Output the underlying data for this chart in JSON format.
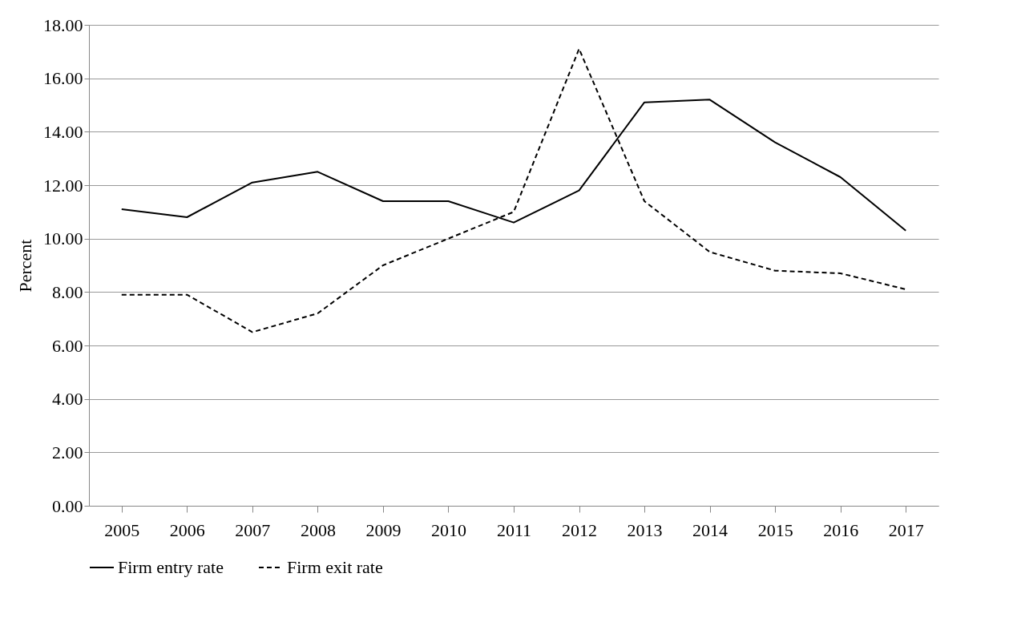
{
  "chart_data": {
    "type": "line",
    "ylabel": "Percent",
    "categories": [
      "2005",
      "2006",
      "2007",
      "2008",
      "2009",
      "2010",
      "2011",
      "2012",
      "2013",
      "2014",
      "2015",
      "2016",
      "2017"
    ],
    "series": [
      {
        "name": "Firm entry rate",
        "color": "#000000",
        "line_style": "solid",
        "values": [
          11.1,
          10.8,
          12.1,
          12.5,
          11.4,
          11.4,
          10.6,
          11.8,
          15.1,
          15.2,
          13.6,
          12.3,
          10.3
        ]
      },
      {
        "name": "Firm exit rate",
        "color": "#000000",
        "line_style": "dashed",
        "values": [
          7.9,
          7.9,
          6.5,
          7.2,
          9.0,
          10.0,
          11.0,
          17.1,
          11.4,
          9.5,
          8.8,
          8.7,
          8.1
        ]
      }
    ],
    "ylim": [
      0,
      18
    ],
    "yticks": [
      {
        "value": 0,
        "label": "0.00"
      },
      {
        "value": 2,
        "label": "2.00"
      },
      {
        "value": 4,
        "label": "4.00"
      },
      {
        "value": 6,
        "label": "6.00"
      },
      {
        "value": 8,
        "label": "8.00"
      },
      {
        "value": 10,
        "label": "10.00"
      },
      {
        "value": 12,
        "label": "12.00"
      },
      {
        "value": 14,
        "label": "14.00"
      },
      {
        "value": 16,
        "label": "16.00"
      },
      {
        "value": 18,
        "label": "18.00"
      }
    ],
    "grid": "y",
    "legend": "bottom",
    "marker": "none"
  }
}
